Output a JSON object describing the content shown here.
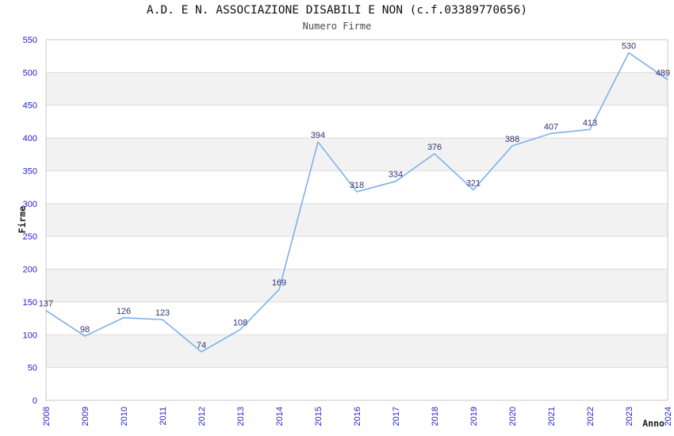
{
  "chart_data": {
    "type": "line",
    "title": "A.D. E N. ASSOCIAZIONE DISABILI E NON (c.f.03389770656)",
    "subtitle": "Numero Firme",
    "xlabel": "Anno",
    "ylabel": "Firme",
    "categories": [
      "2008",
      "2009",
      "2010",
      "2011",
      "2012",
      "2013",
      "2014",
      "2015",
      "2016",
      "2017",
      "2018",
      "2019",
      "2020",
      "2021",
      "2022",
      "2023",
      "2024"
    ],
    "series": [
      {
        "name": "Numero Firme",
        "values": [
          137,
          98,
          126,
          123,
          74,
          108,
          169,
          394,
          318,
          334,
          376,
          321,
          388,
          407,
          413,
          530,
          489
        ]
      }
    ],
    "ylim": [
      0,
      550
    ],
    "ytick_step": 50,
    "yticks": [
      0,
      50,
      100,
      150,
      200,
      250,
      300,
      350,
      400,
      450,
      500,
      550
    ],
    "grid": true,
    "banding": "alternating horizontal gray bands every 50 units",
    "legend_position": "none",
    "data_labels_visible": true,
    "xtick_rotation_deg": -90
  },
  "colors": {
    "background": "#ffffff",
    "band_fill": "#f2f2f2",
    "grid_line": "#dcdcdc",
    "plot_border": "#c8c8c8",
    "series_line": "#7eb1e8",
    "tick_label": "#2424cc",
    "data_label": "#333377",
    "title_text": "#111111",
    "subtitle_text": "#4a4a4a",
    "axis_title_text": "#1a1a1a"
  }
}
